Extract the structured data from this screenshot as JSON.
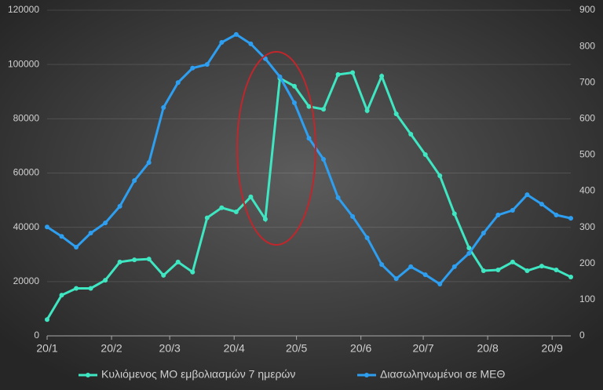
{
  "chart_data": {
    "type": "line",
    "x": [
      0,
      7,
      14,
      21,
      28,
      35,
      42,
      49,
      56,
      63,
      70,
      77,
      84,
      91,
      98,
      105,
      112,
      119,
      126,
      133,
      140,
      147,
      154,
      161,
      168,
      175,
      182,
      189,
      196,
      203,
      210,
      217,
      224,
      231,
      238,
      245,
      252
    ],
    "xlim": [
      0,
      252
    ],
    "xticks": [
      {
        "value": 0,
        "label": "20/1"
      },
      {
        "value": 31,
        "label": "20/2"
      },
      {
        "value": 59,
        "label": "20/3"
      },
      {
        "value": 90,
        "label": "20/4"
      },
      {
        "value": 120,
        "label": "20/5"
      },
      {
        "value": 151,
        "label": "20/6"
      },
      {
        "value": 181,
        "label": "20/7"
      },
      {
        "value": 212,
        "label": "20/8"
      },
      {
        "value": 243,
        "label": "20/9"
      }
    ],
    "ylim": [
      0,
      120000
    ],
    "yticks": [
      0,
      20000,
      40000,
      60000,
      80000,
      100000,
      120000
    ],
    "y2lim": [
      0,
      900
    ],
    "y2ticks": [
      0,
      100,
      200,
      300,
      400,
      500,
      600,
      700,
      800,
      900
    ],
    "grid": true,
    "legend": "bottom",
    "series": [
      {
        "name": "Κυλιόμενος ΜΟ εμβολιασμών 7 ημερών",
        "color": "#3fe6c2",
        "values": [
          6000,
          15000,
          17500,
          17500,
          20500,
          27200,
          28000,
          28300,
          22300,
          27200,
          23500,
          43500,
          47200,
          45700,
          51200,
          43000,
          94900,
          92000,
          84500,
          83500,
          96300,
          97000,
          83000,
          95700,
          81800,
          74300,
          66800,
          59000,
          45000,
          32400,
          24000,
          24300,
          27200,
          24000,
          25700,
          24300,
          21700
        ]
      },
      {
        "name": "Διασωληνωμένοι σε ΜΕΘ",
        "color": "#2e9ff0",
        "axis": "y2",
        "values": [
          301,
          275,
          245,
          284,
          312,
          358,
          429,
          479,
          631,
          700,
          740,
          750,
          811,
          833,
          807,
          766,
          716,
          644,
          546,
          488,
          382,
          330,
          271,
          197,
          158,
          191,
          169,
          143,
          191,
          228,
          284,
          334,
          347,
          390,
          364,
          334,
          325
        ]
      }
    ]
  }
}
